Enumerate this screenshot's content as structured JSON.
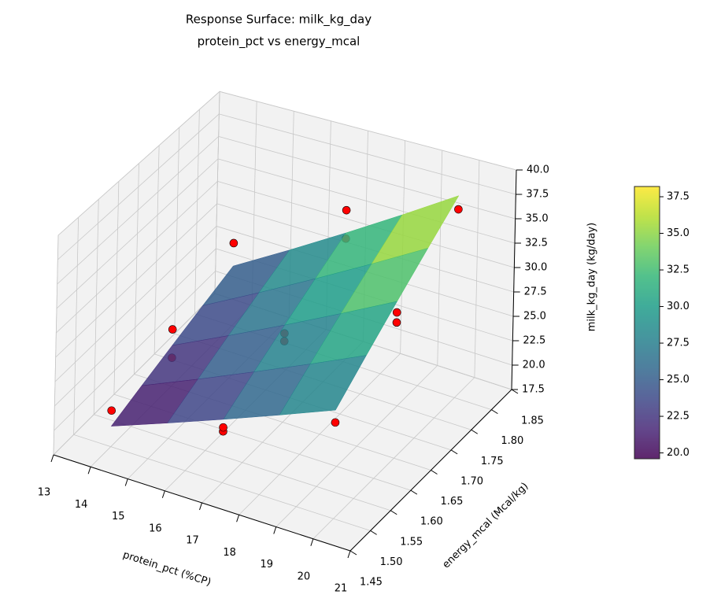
{
  "chart_data": {
    "type": "surface",
    "title": "Response Surface: milk_kg_day",
    "subtitle": "protein_pct vs energy_mcal",
    "xlabel": "protein_pct (%CP)",
    "ylabel": "energy_mcal (Mcal/kg)",
    "zlabel": "milk_kg_day (kg/day)",
    "xlim": [
      13,
      21
    ],
    "ylim": [
      1.45,
      1.85
    ],
    "zlim": [
      17.5,
      40
    ],
    "xticks": [
      13,
      14,
      15,
      16,
      17,
      18,
      19,
      20,
      21
    ],
    "yticks": [
      1.45,
      {
        "value": 1.5,
        "label": "1.50"
      },
      1.55,
      {
        "value": 1.6,
        "label": "1.60"
      },
      1.65,
      {
        "value": 1.7,
        "label": "1.70"
      },
      1.75,
      {
        "value": 1.8,
        "label": "1.80"
      },
      1.85
    ],
    "zticks": [
      17.5,
      {
        "value": 20,
        "label": "20.0"
      },
      22.5,
      {
        "value": 25,
        "label": "25.0"
      },
      27.5,
      {
        "value": 30,
        "label": "30.0"
      },
      32.5,
      {
        "value": 35,
        "label": "35.0"
      },
      37.5,
      {
        "value": 40,
        "label": "40.0"
      }
    ],
    "surface": {
      "x": [
        14,
        15.5,
        17,
        18.5,
        20
      ],
      "y": [
        1.5,
        1.575,
        1.65,
        1.725,
        1.8
      ],
      "z": [
        [
          19.6,
          21.7,
          23.8,
          25.9,
          28.0
        ],
        [
          20.7,
          23.16,
          25.63,
          28.09,
          30.55
        ],
        [
          21.8,
          24.63,
          27.45,
          30.28,
          33.1
        ],
        [
          22.9,
          26.09,
          29.28,
          32.46,
          35.65
        ],
        [
          24.0,
          27.55,
          31.1,
          34.65,
          38.2
        ]
      ]
    },
    "points": {
      "color": "#ff0000",
      "x": [
        14,
        17,
        17,
        20,
        14,
        17,
        17,
        20,
        20,
        14,
        17,
        17,
        20,
        14
      ],
      "y": [
        1.5,
        1.5,
        1.5,
        1.5,
        1.65,
        1.65,
        1.65,
        1.65,
        1.65,
        1.8,
        1.8,
        1.8,
        1.8,
        1.65
      ],
      "z": [
        21.2,
        22.6,
        23.0,
        26.8,
        23.5,
        26.6,
        25.8,
        32.0,
        31.0,
        26.5,
        30.5,
        33.5,
        36.8,
        20.5
      ]
    },
    "colorbar": {
      "clim": [
        19.6,
        38.2
      ],
      "ticks": [
        {
          "value": 20,
          "label": "20.0"
        },
        22.5,
        {
          "value": 25,
          "label": "25.0"
        },
        27.5,
        {
          "value": 30,
          "label": "30.0"
        },
        32.5,
        {
          "value": 35,
          "label": "35.0"
        },
        37.5
      ]
    }
  }
}
